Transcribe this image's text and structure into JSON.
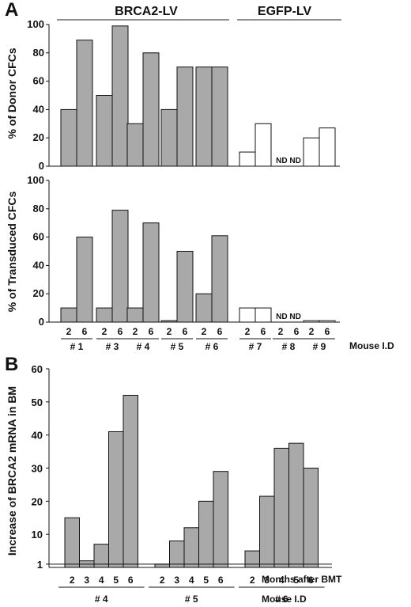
{
  "figure": {
    "panel_a_letter": "A",
    "panel_b_letter": "B",
    "group_brca2": "BRCA2-LV",
    "group_egfp": "EGFP-LV"
  },
  "chart_data": [
    {
      "id": "A-top",
      "type": "bar",
      "ylabel": "% of Donor CFCs",
      "ylim": [
        0,
        100
      ],
      "yticks": [
        0,
        20,
        40,
        60,
        80,
        100
      ],
      "mice": [
        "# 1",
        "# 3",
        "# 4",
        "# 5",
        "# 6",
        "# 7",
        "# 8",
        "# 9"
      ],
      "months": [
        "2",
        "6"
      ],
      "values": [
        [
          40,
          89
        ],
        [
          50,
          99
        ],
        [
          30,
          80
        ],
        [
          40,
          70
        ],
        [
          70,
          70
        ],
        [
          10,
          30
        ],
        [
          null,
          null
        ],
        [
          20,
          27
        ]
      ],
      "fill": [
        "gray",
        "gray",
        "gray",
        "gray",
        "gray",
        "white",
        "white",
        "white"
      ],
      "missing_label": "ND",
      "colors": {
        "gray": "#a9a9a9",
        "white": "#ffffff"
      }
    },
    {
      "id": "A-bottom",
      "type": "bar",
      "ylabel": "% of Transduced CFCs",
      "ylim": [
        0,
        100
      ],
      "yticks": [
        0,
        20,
        40,
        60,
        80,
        100
      ],
      "mice": [
        "# 1",
        "# 3",
        "# 4",
        "# 5",
        "# 6",
        "# 7",
        "# 8",
        "# 9"
      ],
      "months": [
        "2",
        "6"
      ],
      "values": [
        [
          10,
          60
        ],
        [
          10,
          79
        ],
        [
          10,
          70
        ],
        [
          1,
          50
        ],
        [
          20,
          61
        ],
        [
          10,
          10
        ],
        [
          null,
          null
        ],
        [
          1,
          1
        ]
      ],
      "fill": [
        "gray",
        "gray",
        "gray",
        "gray",
        "gray",
        "white",
        "white",
        "white"
      ],
      "missing_label": "ND",
      "xaxis_side_label": "Mouse I.D",
      "colors": {
        "gray": "#a9a9a9",
        "white": "#ffffff"
      }
    },
    {
      "id": "B",
      "type": "bar",
      "ylabel": "Increase of BRCA2 mRNA in BM",
      "ylim": [
        0,
        60
      ],
      "yticks": [
        1,
        10,
        20,
        30,
        40,
        50,
        60
      ],
      "mice": [
        "# 4",
        "# 5",
        "# 6"
      ],
      "months": [
        "2",
        "3",
        "4",
        "5",
        "6"
      ],
      "values": [
        [
          15,
          2,
          7,
          41,
          52
        ],
        [
          1,
          8,
          12,
          20,
          29
        ],
        [
          5,
          21.5,
          36,
          37.5,
          30
        ]
      ],
      "reference_line": 1,
      "xaxis_side_label_months": "Months after BMT",
      "xaxis_side_label_mouse": "Mouse I.D",
      "colors": {
        "gray": "#a9a9a9"
      }
    }
  ]
}
